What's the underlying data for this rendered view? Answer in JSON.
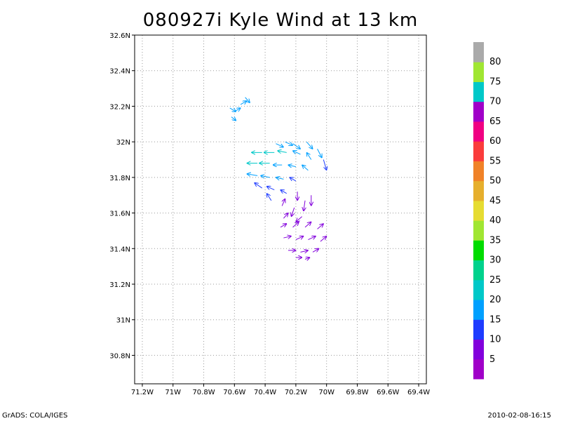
{
  "title": "080927i Kyle Wind at 13 km",
  "footer_left": "GrADS: COLA/IGES",
  "footer_right": "2010-02-08-16:15",
  "chart_data": {
    "type": "vector",
    "title": "080927i Kyle Wind at 13 km",
    "x_axis": {
      "range": [
        -71.25,
        -69.35
      ],
      "ticks": [
        -71.2,
        -71.0,
        -70.8,
        -70.6,
        -70.4,
        -70.2,
        -70.0,
        -69.8,
        -69.6,
        -69.4
      ],
      "labels": [
        "71.2W",
        "71W",
        "70.8W",
        "70.6W",
        "70.4W",
        "70.2W",
        "70W",
        "69.8W",
        "69.6W",
        "69.4W"
      ]
    },
    "y_axis": {
      "range": [
        30.64,
        32.6
      ],
      "ticks": [
        30.8,
        31.0,
        31.2,
        31.4,
        31.6,
        31.8,
        32.0,
        32.2,
        32.4,
        32.6
      ],
      "labels": [
        "30.8N",
        "31N",
        "31.2N",
        "31.4N",
        "31.6N",
        "31.8N",
        "32N",
        "32.2N",
        "32.4N",
        "32.6N"
      ]
    },
    "grid": true,
    "colorbar": {
      "labels": [
        "5",
        "10",
        "15",
        "20",
        "25",
        "30",
        "35",
        "40",
        "45",
        "50",
        "55",
        "60",
        "65",
        "70",
        "75",
        "80"
      ],
      "colors": [
        "#a000c8",
        "#8200dc",
        "#1e3cff",
        "#00a0ff",
        "#00c8c8",
        "#00d28c",
        "#00dc00",
        "#a0e632",
        "#e6dc32",
        "#e6af2d",
        "#f08228",
        "#fa3c3c",
        "#f00082",
        "#a000c8",
        "#00c8c8",
        "#a0e632",
        "#aaaaaa"
      ]
    },
    "vectors": [
      {
        "lon": -70.63,
        "lat": 32.19,
        "u": 0.04,
        "v": -0.02,
        "speed": 17
      },
      {
        "lon": -70.6,
        "lat": 32.17,
        "u": 0.04,
        "v": 0.02,
        "speed": 17
      },
      {
        "lon": -70.56,
        "lat": 32.21,
        "u": 0.04,
        "v": 0.02,
        "speed": 17
      },
      {
        "lon": -70.53,
        "lat": 32.25,
        "u": 0.03,
        "v": -0.03,
        "speed": 16
      },
      {
        "lon": -70.62,
        "lat": 32.14,
        "u": 0.03,
        "v": -0.02,
        "speed": 16
      },
      {
        "lon": -70.33,
        "lat": 31.99,
        "u": 0.05,
        "v": -0.02,
        "speed": 19
      },
      {
        "lon": -70.27,
        "lat": 32.0,
        "u": 0.05,
        "v": -0.02,
        "speed": 19
      },
      {
        "lon": -70.22,
        "lat": 31.99,
        "u": 0.05,
        "v": -0.03,
        "speed": 18
      },
      {
        "lon": -70.13,
        "lat": 32.0,
        "u": 0.04,
        "v": -0.04,
        "speed": 16
      },
      {
        "lon": -70.06,
        "lat": 31.96,
        "u": 0.03,
        "v": -0.05,
        "speed": 15
      },
      {
        "lon": -70.02,
        "lat": 31.9,
        "u": 0.02,
        "v": -0.06,
        "speed": 14
      },
      {
        "lon": -70.42,
        "lat": 31.94,
        "u": -0.07,
        "v": 0.0,
        "speed": 21
      },
      {
        "lon": -70.34,
        "lat": 31.94,
        "u": -0.07,
        "v": 0.0,
        "speed": 21
      },
      {
        "lon": -70.26,
        "lat": 31.94,
        "u": -0.06,
        "v": 0.01,
        "speed": 20
      },
      {
        "lon": -70.17,
        "lat": 31.93,
        "u": -0.05,
        "v": 0.02,
        "speed": 18
      },
      {
        "lon": -70.1,
        "lat": 31.9,
        "u": -0.03,
        "v": 0.04,
        "speed": 16
      },
      {
        "lon": -70.45,
        "lat": 31.88,
        "u": -0.07,
        "v": 0.0,
        "speed": 20
      },
      {
        "lon": -70.37,
        "lat": 31.88,
        "u": -0.07,
        "v": 0.0,
        "speed": 20
      },
      {
        "lon": -70.29,
        "lat": 31.87,
        "u": -0.06,
        "v": 0.0,
        "speed": 19
      },
      {
        "lon": -70.2,
        "lat": 31.86,
        "u": -0.05,
        "v": 0.01,
        "speed": 17
      },
      {
        "lon": -70.12,
        "lat": 31.84,
        "u": -0.04,
        "v": 0.03,
        "speed": 15
      },
      {
        "lon": -70.45,
        "lat": 31.81,
        "u": -0.07,
        "v": 0.01,
        "speed": 18
      },
      {
        "lon": -70.37,
        "lat": 31.8,
        "u": -0.06,
        "v": 0.01,
        "speed": 17
      },
      {
        "lon": -70.28,
        "lat": 31.79,
        "u": -0.05,
        "v": 0.01,
        "speed": 15
      },
      {
        "lon": -70.2,
        "lat": 31.78,
        "u": -0.04,
        "v": 0.02,
        "speed": 13
      },
      {
        "lon": -70.42,
        "lat": 31.74,
        "u": -0.05,
        "v": 0.03,
        "speed": 14
      },
      {
        "lon": -70.34,
        "lat": 31.73,
        "u": -0.05,
        "v": 0.02,
        "speed": 13
      },
      {
        "lon": -70.26,
        "lat": 31.71,
        "u": -0.04,
        "v": 0.02,
        "speed": 11
      },
      {
        "lon": -70.36,
        "lat": 31.67,
        "u": -0.03,
        "v": 0.04,
        "speed": 11
      },
      {
        "lon": -70.29,
        "lat": 31.64,
        "u": 0.02,
        "v": 0.04,
        "speed": 9
      },
      {
        "lon": -70.19,
        "lat": 31.72,
        "u": 0.0,
        "v": -0.05,
        "speed": 8
      },
      {
        "lon": -70.14,
        "lat": 31.67,
        "u": -0.01,
        "v": -0.06,
        "speed": 8
      },
      {
        "lon": -70.1,
        "lat": 31.7,
        "u": 0.0,
        "v": -0.06,
        "speed": 7
      },
      {
        "lon": -70.21,
        "lat": 31.63,
        "u": -0.02,
        "v": -0.05,
        "speed": 7
      },
      {
        "lon": -70.16,
        "lat": 31.58,
        "u": -0.04,
        "v": -0.03,
        "speed": 7
      },
      {
        "lon": -70.28,
        "lat": 31.57,
        "u": 0.03,
        "v": 0.03,
        "speed": 6
      },
      {
        "lon": -70.3,
        "lat": 31.52,
        "u": 0.04,
        "v": 0.02,
        "speed": 6
      },
      {
        "lon": -70.22,
        "lat": 31.52,
        "u": 0.04,
        "v": 0.03,
        "speed": 6
      },
      {
        "lon": -70.14,
        "lat": 31.52,
        "u": 0.04,
        "v": 0.03,
        "speed": 6
      },
      {
        "lon": -70.06,
        "lat": 31.51,
        "u": 0.04,
        "v": 0.03,
        "speed": 5
      },
      {
        "lon": -70.28,
        "lat": 31.46,
        "u": 0.05,
        "v": 0.01,
        "speed": 6
      },
      {
        "lon": -70.2,
        "lat": 31.45,
        "u": 0.05,
        "v": 0.02,
        "speed": 6
      },
      {
        "lon": -70.12,
        "lat": 31.45,
        "u": 0.05,
        "v": 0.02,
        "speed": 6
      },
      {
        "lon": -70.04,
        "lat": 31.44,
        "u": 0.04,
        "v": 0.03,
        "speed": 5
      },
      {
        "lon": -70.25,
        "lat": 31.39,
        "u": 0.05,
        "v": 0.0,
        "speed": 6
      },
      {
        "lon": -70.17,
        "lat": 31.38,
        "u": 0.05,
        "v": 0.01,
        "speed": 6
      },
      {
        "lon": -70.09,
        "lat": 31.38,
        "u": 0.04,
        "v": 0.02,
        "speed": 5
      },
      {
        "lon": -70.2,
        "lat": 31.35,
        "u": 0.04,
        "v": 0.0,
        "speed": 5
      },
      {
        "lon": -70.14,
        "lat": 31.34,
        "u": 0.03,
        "v": 0.01,
        "speed": 5
      }
    ]
  }
}
